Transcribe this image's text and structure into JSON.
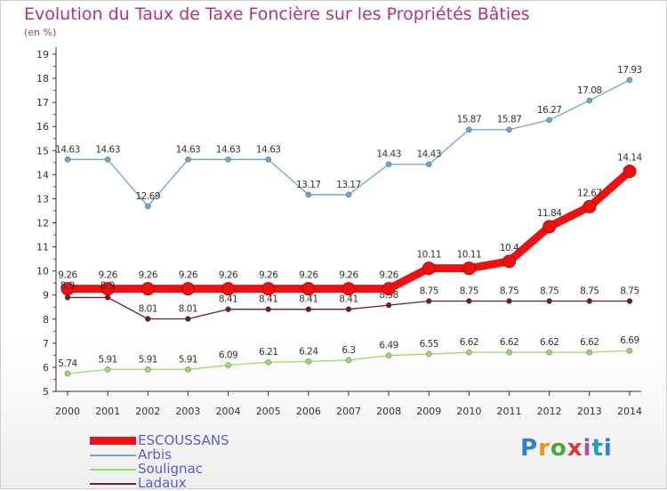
{
  "title": "Evolution du Taux de Taxe Foncière sur les Propriétés Bâties",
  "unit": "(en %)",
  "brand": "Proxiti",
  "chart_data": {
    "type": "line",
    "x": [
      "2000",
      "2001",
      "2002",
      "2003",
      "2004",
      "2005",
      "2006",
      "2007",
      "2008",
      "2009",
      "2010",
      "2011",
      "2012",
      "2013",
      "2014"
    ],
    "ylim": [
      5,
      19
    ],
    "yticks": [
      5,
      6,
      7,
      8,
      9,
      10,
      11,
      12,
      13,
      14,
      15,
      16,
      17,
      18,
      19
    ],
    "grid": false,
    "legend_position": "bottom-left",
    "series": [
      {
        "name": "Ladaux",
        "color": "#6b1f2a",
        "values": [
          8.9,
          8.9,
          8.01,
          8.01,
          8.41,
          8.41,
          8.41,
          8.41,
          8.58,
          8.75,
          8.75,
          8.75,
          8.75,
          8.75,
          8.75
        ],
        "labels": [
          "",
          "",
          "8.01",
          "8.01",
          "8.41",
          "8.41",
          "8.41",
          "8.41",
          "8.58",
          "8.75",
          "8.75",
          "8.75",
          "8.75",
          "8.75",
          "8.75"
        ]
      },
      {
        "name": "Soulignac",
        "color": "#99dd66",
        "values": [
          5.74,
          5.91,
          5.91,
          5.91,
          6.09,
          6.21,
          6.24,
          6.3,
          6.49,
          6.55,
          6.62,
          6.62,
          6.62,
          6.62,
          6.69
        ],
        "labels": [
          "5.74",
          "5.91",
          "5.91",
          "5.91",
          "6.09",
          "6.21",
          "6.24",
          "6.3",
          "6.49",
          "6.55",
          "6.62",
          "6.62",
          "6.62",
          "6.62",
          "6.69"
        ]
      },
      {
        "name": "Arbis",
        "color": "#6aa6d6",
        "values": [
          14.63,
          14.63,
          12.69,
          14.63,
          14.63,
          14.63,
          13.17,
          13.17,
          14.43,
          14.43,
          15.87,
          15.87,
          16.27,
          17.08,
          17.93
        ],
        "labels": [
          "14.63",
          "14.63",
          "12.69",
          "14.63",
          "14.63",
          "14.63",
          "13.17",
          "13.17",
          "14.43",
          "14.43",
          "15.87",
          "15.87",
          "16.27",
          "17.08",
          "17.93"
        ]
      },
      {
        "name": "ESCOUSSANS",
        "color": "#ee1111",
        "values": [
          9.26,
          9.26,
          9.26,
          9.26,
          9.26,
          9.26,
          9.26,
          9.26,
          9.26,
          10.11,
          10.11,
          10.4,
          11.84,
          12.67,
          14.14
        ],
        "labels": [
          "9.26",
          "9.26",
          "9.26",
          "9.26",
          "9.26",
          "9.26",
          "9.26",
          "9.26",
          "9.26",
          "10.11",
          "10.11",
          "10.4",
          "11.84",
          "12.67",
          "14.14"
        ]
      }
    ],
    "legend": [
      "ESCOUSSANS",
      "Arbis",
      "Soulignac",
      "Ladaux"
    ],
    "extra_labels": [
      "8.9",
      "8.9"
    ]
  }
}
